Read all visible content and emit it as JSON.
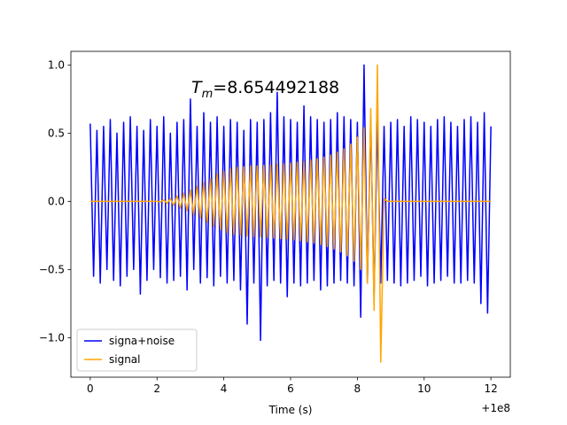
{
  "chart_data": {
    "type": "line",
    "xlabel": "Time (s)",
    "x_offset_text": "+1e8",
    "annotation": {
      "symbol": "T",
      "subscript": "m",
      "text": "=8.654492188"
    },
    "x": [
      0,
      0.1,
      0.2,
      0.3,
      0.4,
      0.5,
      0.6,
      0.7,
      0.8,
      0.9,
      1,
      1.1,
      1.2,
      1.3,
      1.4,
      1.5,
      1.6,
      1.7,
      1.8,
      1.9,
      2,
      2.1,
      2.2,
      2.3,
      2.4,
      2.5,
      2.6,
      2.7,
      2.8,
      2.9,
      3,
      3.1,
      3.2,
      3.3,
      3.4,
      3.5,
      3.6,
      3.7,
      3.8,
      3.9,
      4,
      4.1,
      4.2,
      4.3,
      4.4,
      4.5,
      4.6,
      4.7,
      4.8,
      4.9,
      5,
      5.1,
      5.2,
      5.3,
      5.4,
      5.5,
      5.6,
      5.7,
      5.8,
      5.9,
      6,
      6.1,
      6.2,
      6.3,
      6.4,
      6.5,
      6.6,
      6.7,
      6.8,
      6.9,
      7,
      7.1,
      7.2,
      7.3,
      7.4,
      7.5,
      7.6,
      7.7,
      7.8,
      7.9,
      8,
      8.1,
      8.2,
      8.3,
      8.4,
      8.5,
      8.6,
      8.7,
      8.8,
      8.9,
      9,
      9.1,
      9.2,
      9.3,
      9.4,
      9.5,
      9.6,
      9.7,
      9.8,
      9.9,
      10,
      10.1,
      10.2,
      10.3,
      10.4,
      10.5,
      10.6,
      10.7,
      10.8,
      10.9,
      11,
      11.1,
      11.2,
      11.3,
      11.4,
      11.5,
      11.6,
      11.7,
      11.8,
      11.9,
      12
    ],
    "series": [
      {
        "name": "signa+noise",
        "color": "#0000ff",
        "values": [
          0.57,
          -0.55,
          0.52,
          -0.6,
          0.55,
          -0.5,
          0.6,
          -0.58,
          0.5,
          -0.62,
          0.58,
          -0.55,
          0.62,
          -0.5,
          0.55,
          -0.68,
          0.52,
          -0.58,
          0.6,
          -0.5,
          0.55,
          -0.56,
          0.62,
          -0.6,
          0.5,
          -0.58,
          0.58,
          -0.55,
          0.6,
          -0.65,
          0.75,
          -0.5,
          0.55,
          -0.6,
          0.65,
          -0.56,
          0.58,
          -0.62,
          0.62,
          -0.55,
          0.55,
          -0.6,
          0.6,
          -0.58,
          0.58,
          -0.65,
          0.52,
          -0.9,
          0.6,
          -0.6,
          0.58,
          -1.02,
          0.6,
          -0.62,
          0.65,
          -0.58,
          0.8,
          -0.6,
          0.62,
          -0.7,
          0.6,
          -0.6,
          0.58,
          -0.62,
          0.7,
          -0.6,
          0.62,
          -0.58,
          0.6,
          -0.65,
          0.58,
          -0.62,
          0.6,
          -0.6,
          0.65,
          -0.58,
          0.62,
          -0.6,
          0.6,
          -0.62,
          0.58,
          -0.85,
          1.0,
          -0.6,
          0.6,
          -0.7,
          0.6,
          -0.6,
          0.55,
          -0.58,
          0.58,
          -0.6,
          0.6,
          -0.62,
          0.55,
          -0.6,
          0.62,
          -0.58,
          0.6,
          -0.55,
          0.58,
          -0.62,
          0.55,
          -0.6,
          0.6,
          -0.58,
          0.62,
          -0.55,
          0.58,
          -0.6,
          0.55,
          -0.6,
          0.6,
          -0.58,
          0.62,
          -0.6,
          0.58,
          -0.75,
          0.65,
          -0.82,
          0.55
        ]
      },
      {
        "name": "signal",
        "color": "#ffa500",
        "values": [
          0,
          0,
          0,
          0,
          0,
          0,
          0,
          0,
          0,
          0,
          0,
          0,
          0,
          0,
          0,
          0,
          0,
          0,
          0,
          0,
          0,
          -0.005,
          0.01,
          -0.015,
          0.02,
          -0.03,
          0.04,
          -0.05,
          0.06,
          -0.07,
          0.085,
          -0.1,
          0.11,
          -0.125,
          0.14,
          -0.155,
          0.17,
          -0.185,
          0.2,
          -0.21,
          0.22,
          -0.23,
          0.24,
          -0.245,
          0.25,
          -0.25,
          0.255,
          -0.255,
          0.26,
          -0.26,
          0.26,
          -0.262,
          0.264,
          -0.266,
          0.268,
          -0.27,
          0.272,
          -0.274,
          0.276,
          -0.278,
          0.28,
          -0.283,
          0.286,
          -0.29,
          0.294,
          -0.298,
          0.302,
          -0.307,
          0.312,
          -0.318,
          0.325,
          -0.332,
          0.34,
          -0.35,
          0.36,
          -0.372,
          0.385,
          -0.4,
          0.42,
          -0.44,
          0.47,
          -0.5,
          0.54,
          -0.6,
          0.68,
          -0.8,
          1.0,
          -1.18,
          0.02,
          0,
          0,
          0,
          0,
          0,
          0,
          0,
          0,
          0,
          0,
          0,
          0,
          0,
          0,
          0,
          0,
          0,
          0,
          0,
          0,
          0,
          0,
          0,
          0,
          0,
          0,
          0,
          0,
          0,
          0,
          0,
          0
        ]
      }
    ],
    "xlim": [
      -0.58,
      12.58
    ],
    "xticks": [
      0,
      2,
      4,
      6,
      8,
      10,
      12
    ],
    "ylim": [
      -1.29,
      1.1
    ],
    "yticks": [
      {
        "value": -1,
        "label": "−1.0"
      },
      {
        "value": -0.5,
        "label": "−0.5"
      },
      {
        "value": 0,
        "label": "0.0"
      },
      {
        "value": 0.5,
        "label": "0.5"
      },
      {
        "value": 1,
        "label": "1.0"
      }
    ],
    "grid": false,
    "legend": "lower left"
  }
}
